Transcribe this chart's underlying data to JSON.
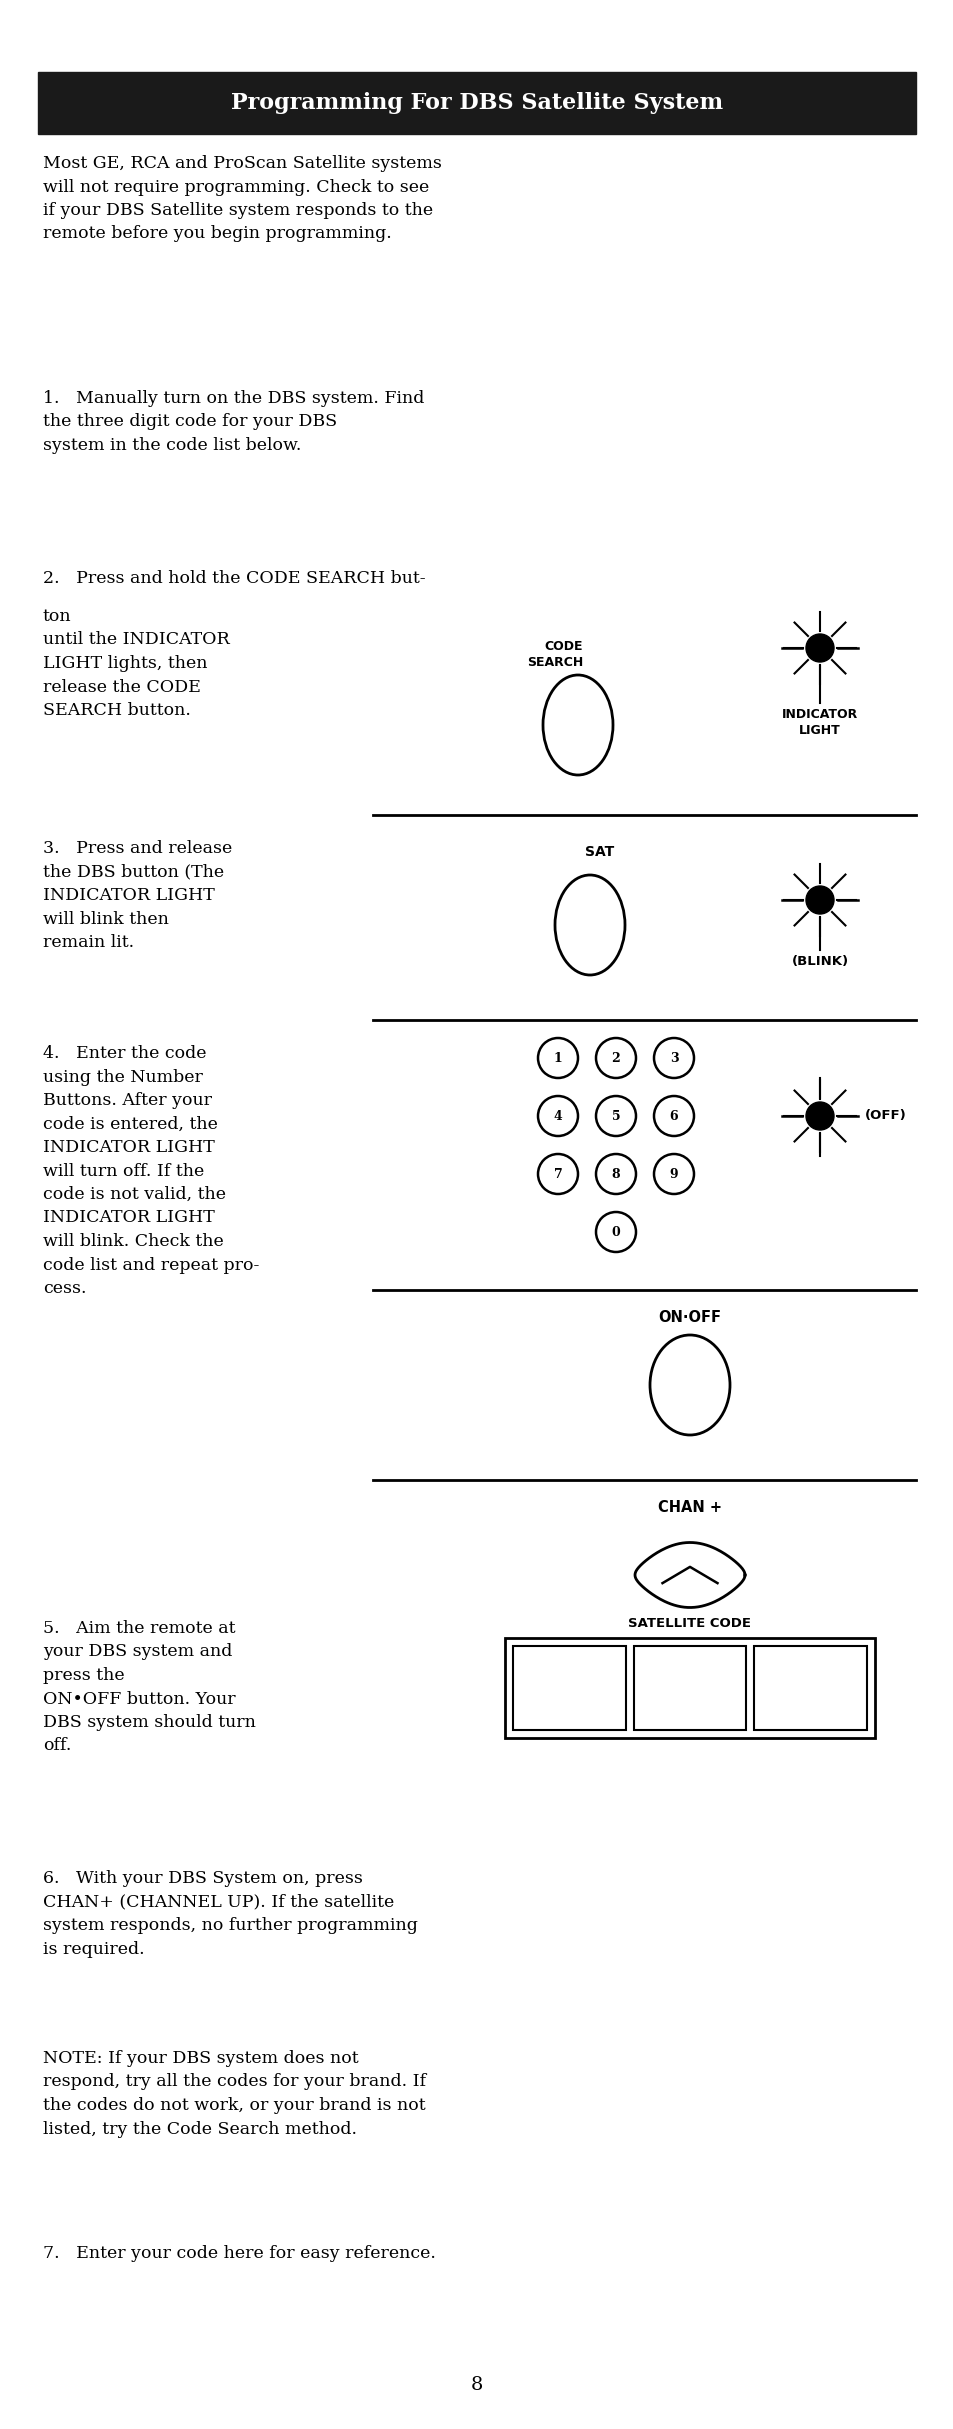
{
  "title": "Programming For DBS Satellite System",
  "title_bg": "#1a1a1a",
  "title_color": "#ffffff",
  "body_color": "#000000",
  "bg_color": "#ffffff",
  "para0": "Most GE, RCA and ProScan Satellite systems\nwill not require programming. Check to see\nif your DBS Satellite system responds to the\nremote before you begin programming.",
  "step1": "1.   Manually turn on the DBS system. Find\nthe three digit code for your DBS\nsystem in the code list below.",
  "step2_first": "2.   Press and hold the CODE SEARCH but-",
  "step2_rest": "ton\nuntil the INDICATOR\nLIGHT lights, then\nrelease the CODE\nSEARCH button.",
  "step3_left": "3.   Press and release\nthe DBS button (The\nINDICATOR LIGHT\nwill blink then\nremain lit.",
  "step4_left": "4.   Enter the code\nusing the Number\nButtons. After your\ncode is entered, the\nINDICATOR LIGHT\nwill turn off. If the\ncode is not valid, the\nINDICATOR LIGHT\nwill blink. Check the\ncode list and repeat pro-\ncess.",
  "step5_left": "5.   Aim the remote at\nyour DBS system and\npress the\nON•OFF button. Your\nDBS system should turn\noff.",
  "step6": "6.   With your DBS System on, press\nCHAN+ (CHANNEL UP). If the satellite\nsystem responds, no further programming\nis required.",
  "note": "NOTE: If your DBS system does not\nrespond, try all the codes for your brand. If\nthe codes do not work, or your brand is not\nlisted, try the Code Search method.",
  "step7": "7.   Enter your code here for easy reference.",
  "page_num": "8",
  "label_code_search": "CODE\nSEARCH",
  "label_indicator_light": "INDICATOR\nLIGHT",
  "label_sat": "SAT",
  "label_blink": "(BLINK)",
  "label_off": "(OFF)",
  "label_on_off": "ON·OFF",
  "label_chan": "CHAN +",
  "label_sat_code": "SATELLITE CODE"
}
